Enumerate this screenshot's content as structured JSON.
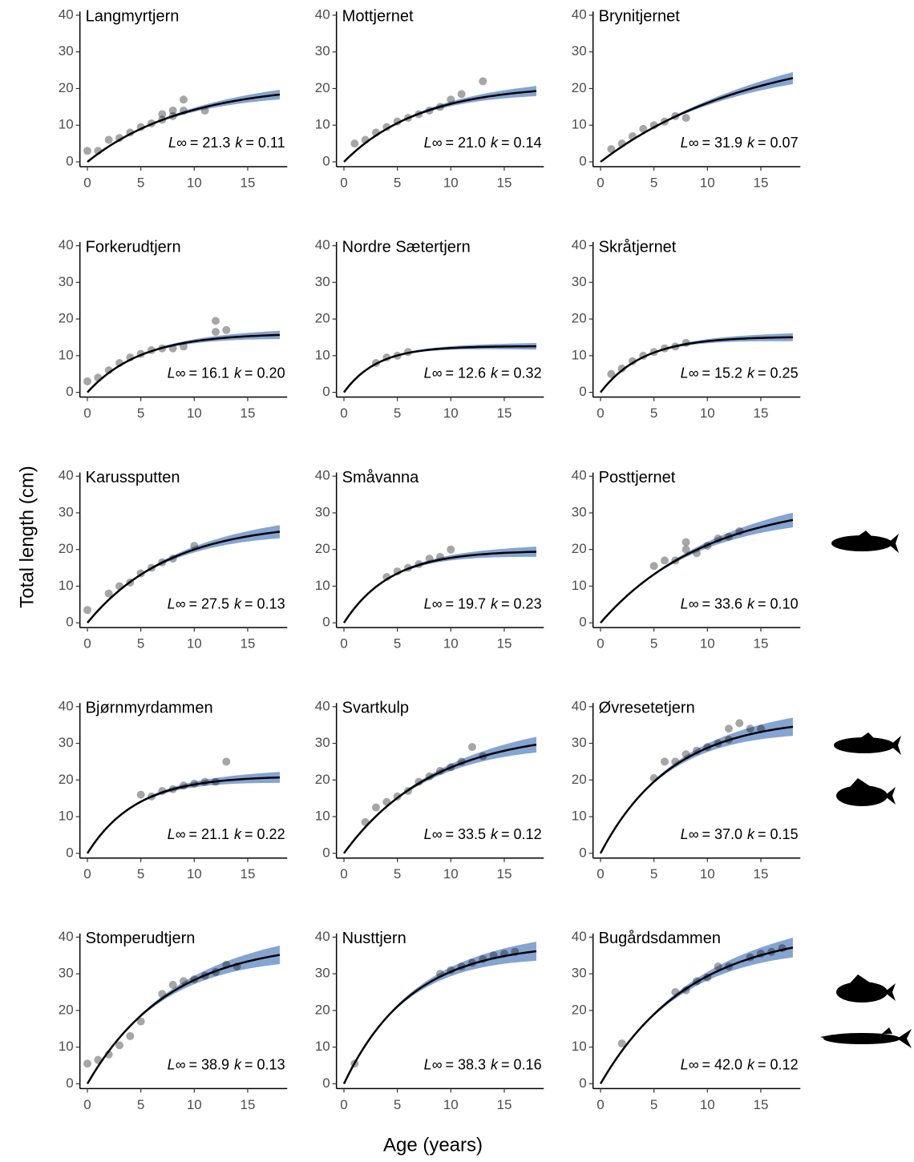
{
  "y_label": "Total length (cm)",
  "x_label": "Age (years)",
  "stats_sep": "=",
  "chart_data": [
    {
      "type": "scatter",
      "title": "Langmyrtjern",
      "stats": [
        {
          "name": "L∞",
          "value": 21.3,
          "label": "21.3"
        },
        {
          "name": "k",
          "value": 0.11,
          "label": "0.11"
        }
      ],
      "points": {
        "x": [
          0,
          1,
          2,
          3,
          4,
          5,
          6,
          7,
          7,
          8,
          8,
          9,
          9,
          11
        ],
        "y": [
          3,
          3,
          6,
          6.5,
          8,
          9.5,
          10.5,
          11.5,
          13,
          12.5,
          14,
          14,
          17,
          14
        ]
      },
      "xlim": [
        -0.7,
        18.7
      ],
      "ylim": [
        -1.3,
        41
      ],
      "xticks": [
        0,
        5,
        10,
        15
      ],
      "yticks": [
        0,
        10,
        20,
        30,
        40
      ]
    },
    {
      "type": "scatter",
      "title": "Mottjernet",
      "stats": [
        {
          "name": "L∞",
          "value": 21.0,
          "label": "21.0"
        },
        {
          "name": "k",
          "value": 0.14,
          "label": "0.14"
        }
      ],
      "points": {
        "x": [
          1,
          2,
          3,
          4,
          5,
          6,
          7,
          8,
          9,
          10,
          11,
          13
        ],
        "y": [
          5,
          6,
          8,
          9.5,
          11,
          12,
          13,
          14,
          15,
          17,
          18.5,
          22
        ]
      },
      "xlim": [
        -0.7,
        18.7
      ],
      "ylim": [
        -1.3,
        41
      ],
      "xticks": [
        0,
        5,
        10,
        15
      ],
      "yticks": [
        0,
        10,
        20,
        30,
        40
      ]
    },
    {
      "type": "scatter",
      "title": "Brynitjernet",
      "stats": [
        {
          "name": "L∞",
          "value": 31.9,
          "label": "31.9"
        },
        {
          "name": "k",
          "value": 0.07,
          "label": "0.07"
        }
      ],
      "points": {
        "x": [
          1,
          2,
          3,
          4,
          5,
          6,
          7,
          8
        ],
        "y": [
          3.5,
          5,
          7,
          9,
          10,
          11,
          12.5,
          12
        ]
      },
      "xlim": [
        -0.7,
        18.7
      ],
      "ylim": [
        -1.3,
        41
      ],
      "xticks": [
        0,
        5,
        10,
        15
      ],
      "yticks": [
        0,
        10,
        20,
        30,
        40
      ]
    },
    {
      "type": "scatter",
      "title": "Forkerudtjern",
      "stats": [
        {
          "name": "L∞",
          "value": 16.1,
          "label": "16.1"
        },
        {
          "name": "k",
          "value": 0.2,
          "label": "0.20"
        }
      ],
      "points": {
        "x": [
          0,
          1,
          2,
          3,
          4,
          5,
          6,
          7,
          8,
          9,
          12,
          12,
          13
        ],
        "y": [
          3,
          4,
          6,
          8,
          9.5,
          10.5,
          11.5,
          12,
          12,
          12.5,
          16.5,
          19.5,
          17
        ]
      },
      "xlim": [
        -0.7,
        18.7
      ],
      "ylim": [
        -1.3,
        41
      ],
      "xticks": [
        0,
        5,
        10,
        15
      ],
      "yticks": [
        0,
        10,
        20,
        30,
        40
      ]
    },
    {
      "type": "scatter",
      "title": "Nordre Sætertjern",
      "stats": [
        {
          "name": "L∞",
          "value": 12.6,
          "label": "12.6"
        },
        {
          "name": "k",
          "value": 0.32,
          "label": "0.32"
        }
      ],
      "points": {
        "x": [
          3,
          4,
          5,
          6
        ],
        "y": [
          8,
          9.5,
          10,
          11
        ]
      },
      "xlim": [
        -0.7,
        18.7
      ],
      "ylim": [
        -1.3,
        41
      ],
      "xticks": [
        0,
        5,
        10,
        15
      ],
      "yticks": [
        0,
        10,
        20,
        30,
        40
      ]
    },
    {
      "type": "scatter",
      "title": "Skråtjernet",
      "stats": [
        {
          "name": "L∞",
          "value": 15.2,
          "label": "15.2"
        },
        {
          "name": "k",
          "value": 0.25,
          "label": "0.25"
        }
      ],
      "points": {
        "x": [
          1,
          2,
          3,
          4,
          5,
          6,
          7,
          8
        ],
        "y": [
          5,
          6.5,
          8.5,
          10,
          11,
          12,
          12.5,
          13.5
        ]
      },
      "xlim": [
        -0.7,
        18.7
      ],
      "ylim": [
        -1.3,
        41
      ],
      "xticks": [
        0,
        5,
        10,
        15
      ],
      "yticks": [
        0,
        10,
        20,
        30,
        40
      ]
    },
    {
      "type": "scatter",
      "title": "Karussputten",
      "stats": [
        {
          "name": "L∞",
          "value": 27.5,
          "label": "27.5"
        },
        {
          "name": "k",
          "value": 0.13,
          "label": "0.13"
        }
      ],
      "points": {
        "x": [
          0,
          2,
          3,
          4,
          5,
          6,
          7,
          8,
          10
        ],
        "y": [
          3.5,
          8,
          10,
          11,
          13.5,
          15,
          16.5,
          17.5,
          21
        ]
      },
      "xlim": [
        -0.7,
        18.7
      ],
      "ylim": [
        -1.3,
        41
      ],
      "xticks": [
        0,
        5,
        10,
        15
      ],
      "yticks": [
        0,
        10,
        20,
        30,
        40
      ]
    },
    {
      "type": "scatter",
      "title": "Småvanna",
      "stats": [
        {
          "name": "L∞",
          "value": 19.7,
          "label": "19.7"
        },
        {
          "name": "k",
          "value": 0.23,
          "label": "0.23"
        }
      ],
      "points": {
        "x": [
          4,
          5,
          6,
          7,
          8,
          9,
          10
        ],
        "y": [
          12.5,
          14,
          15,
          16,
          17.5,
          18,
          20
        ]
      },
      "xlim": [
        -0.7,
        18.7
      ],
      "ylim": [
        -1.3,
        41
      ],
      "xticks": [
        0,
        5,
        10,
        15
      ],
      "yticks": [
        0,
        10,
        20,
        30,
        40
      ]
    },
    {
      "type": "scatter",
      "title": "Posttjernet",
      "stats": [
        {
          "name": "L∞",
          "value": 33.6,
          "label": "33.6"
        },
        {
          "name": "k",
          "value": 0.1,
          "label": "0.10"
        }
      ],
      "points": {
        "x": [
          5,
          6,
          7,
          8,
          8,
          9,
          10,
          11,
          12,
          13
        ],
        "y": [
          15.5,
          17,
          17,
          20,
          22,
          19,
          21,
          23,
          23.5,
          25
        ]
      },
      "xlim": [
        -0.7,
        18.7
      ],
      "ylim": [
        -1.3,
        41
      ],
      "xticks": [
        0,
        5,
        10,
        15
      ],
      "yticks": [
        0,
        10,
        20,
        30,
        40
      ]
    },
    {
      "type": "scatter",
      "title": "Bjørnmyrdammen",
      "stats": [
        {
          "name": "L∞",
          "value": 21.1,
          "label": "21.1"
        },
        {
          "name": "k",
          "value": 0.22,
          "label": "0.22"
        }
      ],
      "points": {
        "x": [
          5,
          6,
          7,
          8,
          9,
          10,
          11,
          12,
          13
        ],
        "y": [
          16,
          15.5,
          17,
          17.5,
          18.5,
          19,
          19.5,
          19.5,
          25
        ]
      },
      "xlim": [
        -0.7,
        18.7
      ],
      "ylim": [
        -1.3,
        41
      ],
      "xticks": [
        0,
        5,
        10,
        15
      ],
      "yticks": [
        0,
        10,
        20,
        30,
        40
      ]
    },
    {
      "type": "scatter",
      "title": "Svartkulp",
      "stats": [
        {
          "name": "L∞",
          "value": 33.5,
          "label": "33.5"
        },
        {
          "name": "k",
          "value": 0.12,
          "label": "0.12"
        }
      ],
      "points": {
        "x": [
          2,
          3,
          4,
          5,
          6,
          7,
          8,
          9,
          10,
          11,
          12,
          13
        ],
        "y": [
          8.5,
          12.5,
          14,
          15.5,
          17,
          19.5,
          21,
          22.5,
          23.5,
          25,
          29,
          26.5
        ]
      },
      "xlim": [
        -0.7,
        18.7
      ],
      "ylim": [
        -1.3,
        41
      ],
      "xticks": [
        0,
        5,
        10,
        15
      ],
      "yticks": [
        0,
        10,
        20,
        30,
        40
      ]
    },
    {
      "type": "scatter",
      "title": "Øvresetetjern",
      "stats": [
        {
          "name": "L∞",
          "value": 37.0,
          "label": "37.0"
        },
        {
          "name": "k",
          "value": 0.15,
          "label": "0.15"
        }
      ],
      "points": {
        "x": [
          5,
          6,
          7,
          8,
          9,
          10,
          11,
          12,
          12,
          13,
          14,
          15
        ],
        "y": [
          20.5,
          25,
          25,
          27,
          28,
          29,
          30,
          31,
          34,
          35.5,
          34,
          34
        ]
      },
      "xlim": [
        -0.7,
        18.7
      ],
      "ylim": [
        -1.3,
        41
      ],
      "xticks": [
        0,
        5,
        10,
        15
      ],
      "yticks": [
        0,
        10,
        20,
        30,
        40
      ]
    },
    {
      "type": "scatter",
      "title": "Stomperudtjern",
      "stats": [
        {
          "name": "L∞",
          "value": 38.9,
          "label": "38.9"
        },
        {
          "name": "k",
          "value": 0.13,
          "label": "0.13"
        }
      ],
      "points": {
        "x": [
          0,
          1,
          2,
          3,
          4,
          5,
          7,
          8,
          9,
          10,
          11,
          12,
          13,
          14
        ],
        "y": [
          5.5,
          6.5,
          8,
          10.5,
          13,
          17,
          24.5,
          27,
          28,
          28.5,
          29.5,
          30.5,
          32.5,
          32
        ]
      },
      "xlim": [
        -0.7,
        18.7
      ],
      "ylim": [
        -1.3,
        41
      ],
      "xticks": [
        0,
        5,
        10,
        15
      ],
      "yticks": [
        0,
        10,
        20,
        30,
        40
      ]
    },
    {
      "type": "scatter",
      "title": "Nusttjern",
      "stats": [
        {
          "name": "L∞",
          "value": 38.3,
          "label": "38.3"
        },
        {
          "name": "k",
          "value": 0.16,
          "label": "0.16"
        }
      ],
      "points": {
        "x": [
          1,
          9,
          10,
          11,
          12,
          13,
          14,
          15,
          16
        ],
        "y": [
          5.5,
          30,
          31,
          32,
          33,
          34,
          35,
          35.5,
          36
        ]
      },
      "xlim": [
        -0.7,
        18.7
      ],
      "ylim": [
        -1.3,
        41
      ],
      "xticks": [
        0,
        5,
        10,
        15
      ],
      "yticks": [
        0,
        10,
        20,
        30,
        40
      ]
    },
    {
      "type": "scatter",
      "title": "Bugårdsdammen",
      "stats": [
        {
          "name": "L∞",
          "value": 42.0,
          "label": "42.0"
        },
        {
          "name": "k",
          "value": 0.12,
          "label": "0.12"
        }
      ],
      "points": {
        "x": [
          2,
          7,
          8,
          9,
          10,
          11,
          12,
          14,
          15,
          16,
          17
        ],
        "y": [
          11,
          25,
          25.5,
          28,
          29,
          32,
          32,
          34.5,
          35.5,
          36,
          37
        ]
      },
      "xlim": [
        -0.7,
        18.7
      ],
      "ylim": [
        -1.3,
        41
      ],
      "xticks": [
        0,
        5,
        10,
        15
      ],
      "yticks": [
        0,
        10,
        20,
        30,
        40
      ]
    }
  ]
}
